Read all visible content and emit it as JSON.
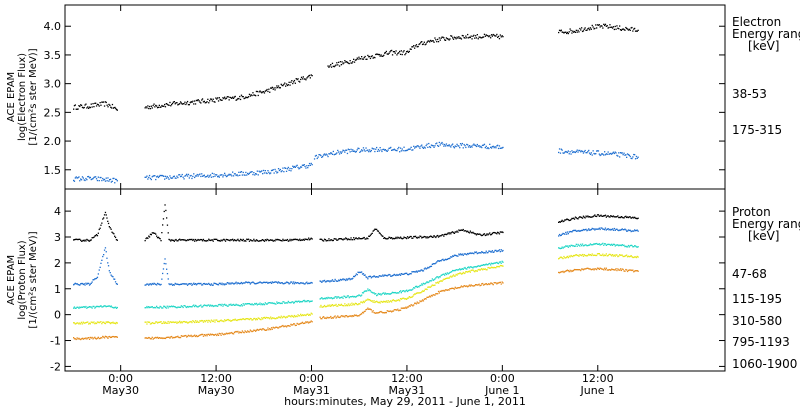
{
  "x_axis": {
    "title": "hours:minutes, May 29, 2011 - June  1, 2011",
    "ticks": [
      {
        "x": 0,
        "time": "0:00",
        "date": "May30"
      },
      {
        "x": 12,
        "time": "12:00",
        "date": "May30"
      },
      {
        "x": 24,
        "time": "0:00",
        "date": "May31"
      },
      {
        "x": 36,
        "time": "12:00",
        "date": "May31"
      },
      {
        "x": 48,
        "time": "0:00",
        "date": "June 1"
      },
      {
        "x": 60,
        "time": "12:00",
        "date": "June 1"
      }
    ],
    "xlim": [
      -7,
      76
    ]
  },
  "chart_data": [
    {
      "type": "scatter",
      "ylabel_lines": [
        "ACE EPAM",
        "log(Electron Flux)",
        "[1/(cm²s ster MeV)]"
      ],
      "ylim": [
        1.2,
        4.3
      ],
      "yticks": [
        "1.5",
        "2.0",
        "2.5",
        "3.0",
        "3.5",
        "4.0"
      ],
      "legend": {
        "title_lines": [
          "Electron",
          "Energy ranges",
          "[keV]"
        ]
      },
      "series": [
        {
          "name": "38-53",
          "color": "#000000",
          "segments": [
            {
              "x": [
                -6,
                -4,
                -2,
                -1,
                -0.5
              ],
              "y": [
                2.6,
                2.62,
                2.66,
                2.6,
                2.55
              ]
            },
            {
              "x": [
                3,
                6,
                9,
                12,
                15,
                18,
                20,
                22,
                24
              ],
              "y": [
                2.6,
                2.65,
                2.69,
                2.73,
                2.77,
                2.87,
                2.96,
                3.06,
                3.15
              ]
            },
            {
              "x": [
                26,
                28,
                30,
                32,
                34,
                36,
                37,
                39,
                41,
                43,
                46,
                48
              ],
              "y": [
                3.32,
                3.37,
                3.45,
                3.5,
                3.55,
                3.55,
                3.67,
                3.76,
                3.8,
                3.83,
                3.83,
                3.83
              ]
            },
            {
              "x": [
                55,
                57,
                59,
                61,
                63,
                65
              ],
              "y": [
                3.91,
                3.93,
                3.99,
                4.01,
                3.97,
                3.94
              ]
            }
          ]
        },
        {
          "name": "175-315",
          "color": "#1f6fd0",
          "segments": [
            {
              "x": [
                -6,
                -4,
                -2,
                -0.5
              ],
              "y": [
                1.35,
                1.36,
                1.34,
                1.32
              ]
            },
            {
              "x": [
                3,
                6,
                9,
                12,
                15,
                18,
                20,
                22,
                24
              ],
              "y": [
                1.37,
                1.38,
                1.4,
                1.42,
                1.44,
                1.47,
                1.5,
                1.55,
                1.6
              ]
            },
            {
              "x": [
                24.3,
                26,
                28,
                30,
                32,
                34,
                36,
                38,
                40,
                42,
                44,
                46,
                48
              ],
              "y": [
                1.72,
                1.78,
                1.83,
                1.85,
                1.87,
                1.86,
                1.87,
                1.92,
                1.95,
                1.93,
                1.93,
                1.92,
                1.9
              ]
            },
            {
              "x": [
                55,
                57,
                60,
                63,
                65
              ],
              "y": [
                1.84,
                1.82,
                1.8,
                1.77,
                1.73
              ]
            }
          ]
        }
      ]
    },
    {
      "type": "scatter",
      "ylabel_lines": [
        "ACE EPAM",
        "log(Proton Flux)",
        "[1/(cm²s ster MeV)]"
      ],
      "ylim": [
        -2.1,
        4.7
      ],
      "yticks": [
        "-2",
        "-1",
        "0",
        "1",
        "2",
        "3",
        "4"
      ],
      "legend": {
        "title_lines": [
          "Proton",
          "Energy ranges",
          "[keV]"
        ]
      },
      "series": [
        {
          "name": "47-68",
          "color": "#000000",
          "segments": [
            {
              "x": [
                -6,
                -4,
                -3,
                -2,
                -1.5,
                -0.5
              ],
              "y": [
                2.9,
                2.9,
                3.1,
                4.0,
                3.4,
                2.9
              ]
            },
            {
              "x": [
                3,
                4,
                5,
                5.5,
                6,
                9,
                12,
                15,
                18,
                21,
                24
              ],
              "y": [
                2.9,
                3.2,
                2.9,
                4.3,
                2.9,
                2.9,
                2.9,
                2.9,
                2.9,
                2.9,
                2.95
              ]
            },
            {
              "x": [
                25,
                28,
                31,
                32,
                33,
                36,
                40,
                43,
                45,
                48
              ],
              "y": [
                2.9,
                2.95,
                2.98,
                3.35,
                2.98,
                3.0,
                3.05,
                3.3,
                3.1,
                3.2
              ]
            },
            {
              "x": [
                55,
                57,
                60,
                63,
                65
              ],
              "y": [
                3.6,
                3.75,
                3.85,
                3.8,
                3.75
              ]
            }
          ]
        },
        {
          "name": "115-195",
          "color": "#1f6fd0",
          "segments": [
            {
              "x": [
                -6,
                -4,
                -3,
                -2,
                -1.5,
                -0.5
              ],
              "y": [
                1.2,
                1.2,
                1.5,
                2.6,
                1.7,
                1.2
              ]
            },
            {
              "x": [
                3,
                5,
                5.5,
                6,
                9,
                12,
                15,
                18,
                21,
                24
              ],
              "y": [
                1.2,
                1.2,
                2.2,
                1.2,
                1.2,
                1.2,
                1.25,
                1.25,
                1.25,
                1.25
              ]
            },
            {
              "x": [
                25,
                27,
                29,
                30,
                31,
                32,
                34,
                36,
                38,
                40,
                42,
                44,
                46,
                48
              ],
              "y": [
                1.3,
                1.35,
                1.4,
                1.7,
                1.45,
                1.5,
                1.55,
                1.6,
                1.75,
                2.1,
                2.3,
                2.4,
                2.45,
                2.5
              ]
            },
            {
              "x": [
                55,
                57,
                60,
                63,
                65
              ],
              "y": [
                3.1,
                3.25,
                3.35,
                3.3,
                3.25
              ]
            }
          ]
        },
        {
          "name": "310-580",
          "color": "#22d6c6",
          "segments": [
            {
              "x": [
                -6,
                -4,
                -2,
                -0.5
              ],
              "y": [
                0.3,
                0.3,
                0.35,
                0.3
              ]
            },
            {
              "x": [
                3,
                6,
                9,
                12,
                15,
                18,
                21,
                24
              ],
              "y": [
                0.3,
                0.32,
                0.35,
                0.38,
                0.4,
                0.45,
                0.5,
                0.55
              ]
            },
            {
              "x": [
                25,
                28,
                30,
                31,
                32,
                34,
                36,
                38,
                40,
                42,
                44,
                46,
                48
              ],
              "y": [
                0.65,
                0.7,
                0.75,
                1.0,
                0.8,
                0.85,
                0.95,
                1.2,
                1.5,
                1.75,
                1.85,
                1.95,
                2.05
              ]
            },
            {
              "x": [
                55,
                57,
                60,
                63,
                65
              ],
              "y": [
                2.6,
                2.7,
                2.75,
                2.7,
                2.65
              ]
            }
          ]
        },
        {
          "name": "795-1193",
          "color": "#e6e61a",
          "segments": [
            {
              "x": [
                -6,
                -4,
                -2,
                -0.5
              ],
              "y": [
                -0.3,
                -0.3,
                -0.28,
                -0.3
              ]
            },
            {
              "x": [
                3,
                6,
                9,
                12,
                15,
                18,
                21,
                24
              ],
              "y": [
                -0.3,
                -0.28,
                -0.25,
                -0.22,
                -0.18,
                -0.12,
                -0.05,
                0.05
              ]
            },
            {
              "x": [
                25,
                28,
                30,
                31,
                32,
                34,
                36,
                38,
                40,
                42,
                44,
                46,
                48
              ],
              "y": [
                0.35,
                0.4,
                0.45,
                0.6,
                0.5,
                0.55,
                0.65,
                0.95,
                1.3,
                1.55,
                1.7,
                1.8,
                1.9
              ]
            },
            {
              "x": [
                55,
                57,
                60,
                63,
                65
              ],
              "y": [
                2.2,
                2.3,
                2.35,
                2.3,
                2.25
              ]
            }
          ]
        },
        {
          "name": "1060-1900",
          "color": "#e58a1e",
          "segments": [
            {
              "x": [
                -6,
                -4,
                -2,
                -0.5
              ],
              "y": [
                -0.9,
                -0.9,
                -0.85,
                -0.85
              ]
            },
            {
              "x": [
                3,
                6,
                9,
                12,
                15,
                18,
                21,
                24
              ],
              "y": [
                -0.9,
                -0.85,
                -0.8,
                -0.75,
                -0.65,
                -0.55,
                -0.4,
                -0.25
              ]
            },
            {
              "x": [
                25,
                28,
                30,
                31,
                32,
                34,
                36,
                38,
                40,
                42,
                44,
                46,
                48
              ],
              "y": [
                -0.1,
                -0.05,
                0.0,
                0.25,
                0.1,
                0.15,
                0.3,
                0.6,
                0.9,
                1.05,
                1.15,
                1.2,
                1.25
              ]
            },
            {
              "x": [
                55,
                57,
                60,
                63,
                65
              ],
              "y": [
                1.65,
                1.75,
                1.8,
                1.75,
                1.7
              ]
            }
          ]
        }
      ]
    }
  ]
}
